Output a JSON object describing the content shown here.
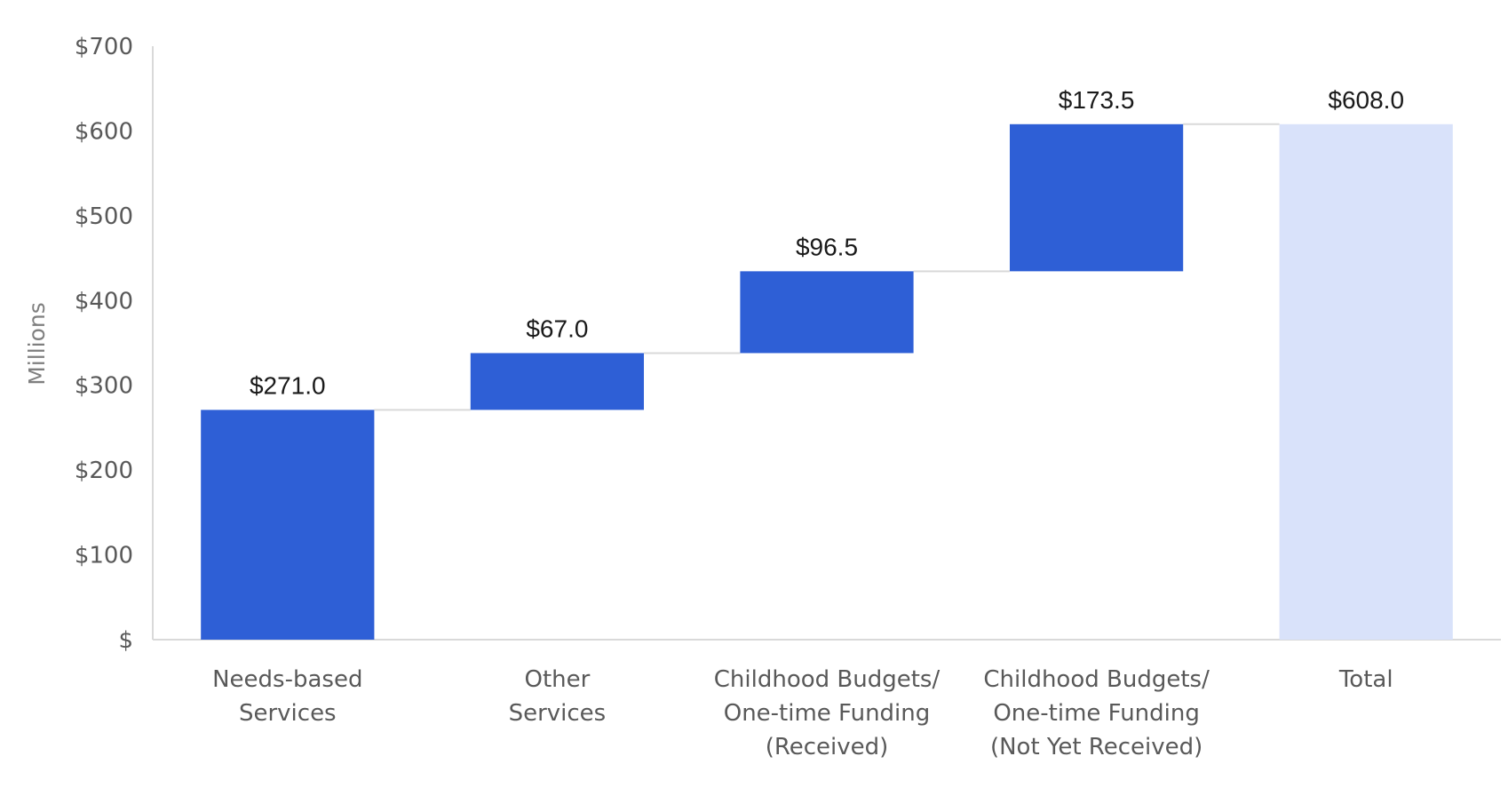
{
  "chart_data": {
    "type": "bar",
    "subtype": "waterfall",
    "title": "",
    "xlabel": "",
    "ylabel": "Millions",
    "ylim": [
      0,
      700
    ],
    "yticks": [
      0,
      100,
      200,
      300,
      400,
      500,
      600,
      700
    ],
    "ytick_labels": [
      "$",
      "$100",
      "$200",
      "$300",
      "$400",
      "$500",
      "$600",
      "$700"
    ],
    "grid": false,
    "legend": "none",
    "categories": [
      [
        "Needs-based",
        "Services"
      ],
      [
        "Other",
        "Services"
      ],
      [
        "Childhood Budgets/",
        "One-time Funding",
        "(Received)"
      ],
      [
        "Childhood Budgets/",
        "One-time Funding",
        "(Not Yet Received)"
      ],
      [
        "Total"
      ]
    ],
    "values": [
      271.0,
      67.0,
      96.5,
      173.5,
      608.0
    ],
    "is_total": [
      false,
      false,
      false,
      false,
      true
    ],
    "data_labels": [
      "$271.0",
      "$67.0",
      "$96.5",
      "$173.5",
      "$608.0"
    ],
    "colors": {
      "increase": "#2E5FD6",
      "total": "#D9E2FA",
      "connector": "#D9D9D9",
      "axis": "#D9D9D9"
    }
  }
}
